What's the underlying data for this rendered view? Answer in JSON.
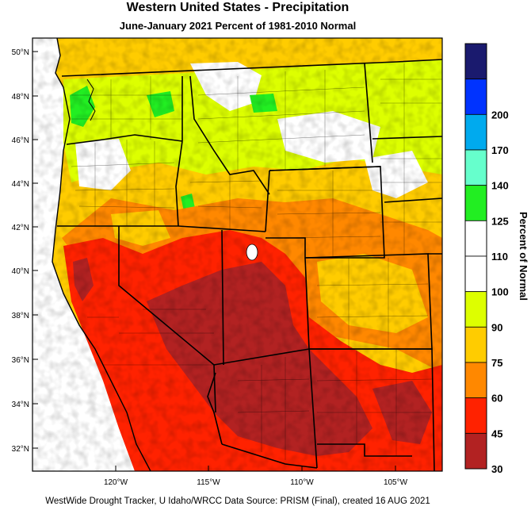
{
  "title": "Western United States - Precipitation",
  "subtitle": "June-January 2021  Percent of 1981-2010 Normal",
  "credit": "WestWide Drought Tracker, U Idaho/WRCC Data Source: PRISM (Final), created 16 AUG 2021",
  "map": {
    "lat_labels": [
      "50°N",
      "48°N",
      "46°N",
      "44°N",
      "42°N",
      "40°N",
      "38°N",
      "36°N",
      "34°N",
      "32°N"
    ],
    "lon_labels": [
      "120°W",
      "115°W",
      "110°W",
      "105°W"
    ]
  },
  "legend": {
    "title": "Percent of Normal",
    "bins": [
      {
        "label": "",
        "color": "#1a1a6e"
      },
      {
        "label": "200",
        "color": "#0033ff"
      },
      {
        "label": "170",
        "color": "#00aaee"
      },
      {
        "label": "140",
        "color": "#66ffcc"
      },
      {
        "label": "125",
        "color": "#22ee22"
      },
      {
        "label": "110",
        "color": "#ffffff"
      },
      {
        "label": "100",
        "color": "#ffffff"
      },
      {
        "label": "90",
        "color": "#ddff00"
      },
      {
        "label": "75",
        "color": "#ffcc00"
      },
      {
        "label": "60",
        "color": "#ff8800"
      },
      {
        "label": "45",
        "color": "#ff2200"
      },
      {
        "label": "30",
        "color": "#b22222"
      }
    ]
  }
}
